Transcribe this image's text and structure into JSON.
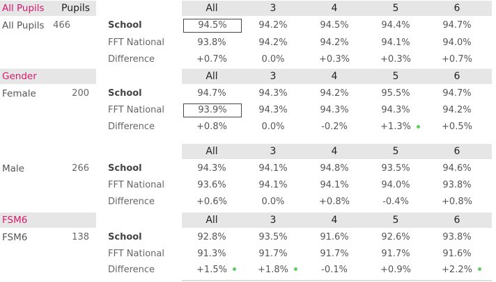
{
  "columns": [
    "All",
    "3",
    "4",
    "5",
    "6"
  ],
  "header": {
    "section": "All Pupils",
    "pupils_label": "Pupils"
  },
  "metrics": {
    "school": "School",
    "national": "FFT National",
    "difference": "Difference"
  },
  "sections": {
    "all": {
      "group": "All Pupils",
      "count": "466",
      "school": [
        "94.5%",
        "94.2%",
        "94.5%",
        "94.4%",
        "94.7%"
      ],
      "national": [
        "93.8%",
        "94.2%",
        "94.2%",
        "94.1%",
        "94.0%"
      ],
      "difference": [
        "+0.7%",
        "0.0%",
        "+0.3%",
        "+0.3%",
        "+0.7%"
      ]
    },
    "gender_title": "Gender",
    "female": {
      "group": "Female",
      "count": "200",
      "school": [
        "94.7%",
        "94.3%",
        "94.2%",
        "95.5%",
        "94.7%"
      ],
      "national": [
        "93.9%",
        "94.3%",
        "94.3%",
        "94.3%",
        "94.2%"
      ],
      "difference": [
        "+0.8%",
        "0.0%",
        "-0.2%",
        "+1.3%",
        "+0.5%"
      ]
    },
    "male": {
      "group": "Male",
      "count": "266",
      "school": [
        "94.3%",
        "94.1%",
        "94.8%",
        "93.5%",
        "94.6%"
      ],
      "national": [
        "93.6%",
        "94.1%",
        "94.1%",
        "94.0%",
        "93.8%"
      ],
      "difference": [
        "+0.6%",
        "0.0%",
        "+0.8%",
        "-0.4%",
        "+0.8%"
      ]
    },
    "fsm_title": "FSM6",
    "fsm": {
      "group": "FSM6",
      "count": "138",
      "school": [
        "92.8%",
        "93.5%",
        "91.6%",
        "92.6%",
        "93.8%"
      ],
      "national": [
        "91.3%",
        "91.7%",
        "91.7%",
        "91.7%",
        "91.6%"
      ],
      "difference": [
        "+1.5%",
        "+1.8%",
        "-0.1%",
        "+0.9%",
        "+2.2%"
      ]
    }
  },
  "colors": {
    "section_title": "#d6186e",
    "band": "#e6e6e6",
    "dot": "#5fce5f"
  }
}
